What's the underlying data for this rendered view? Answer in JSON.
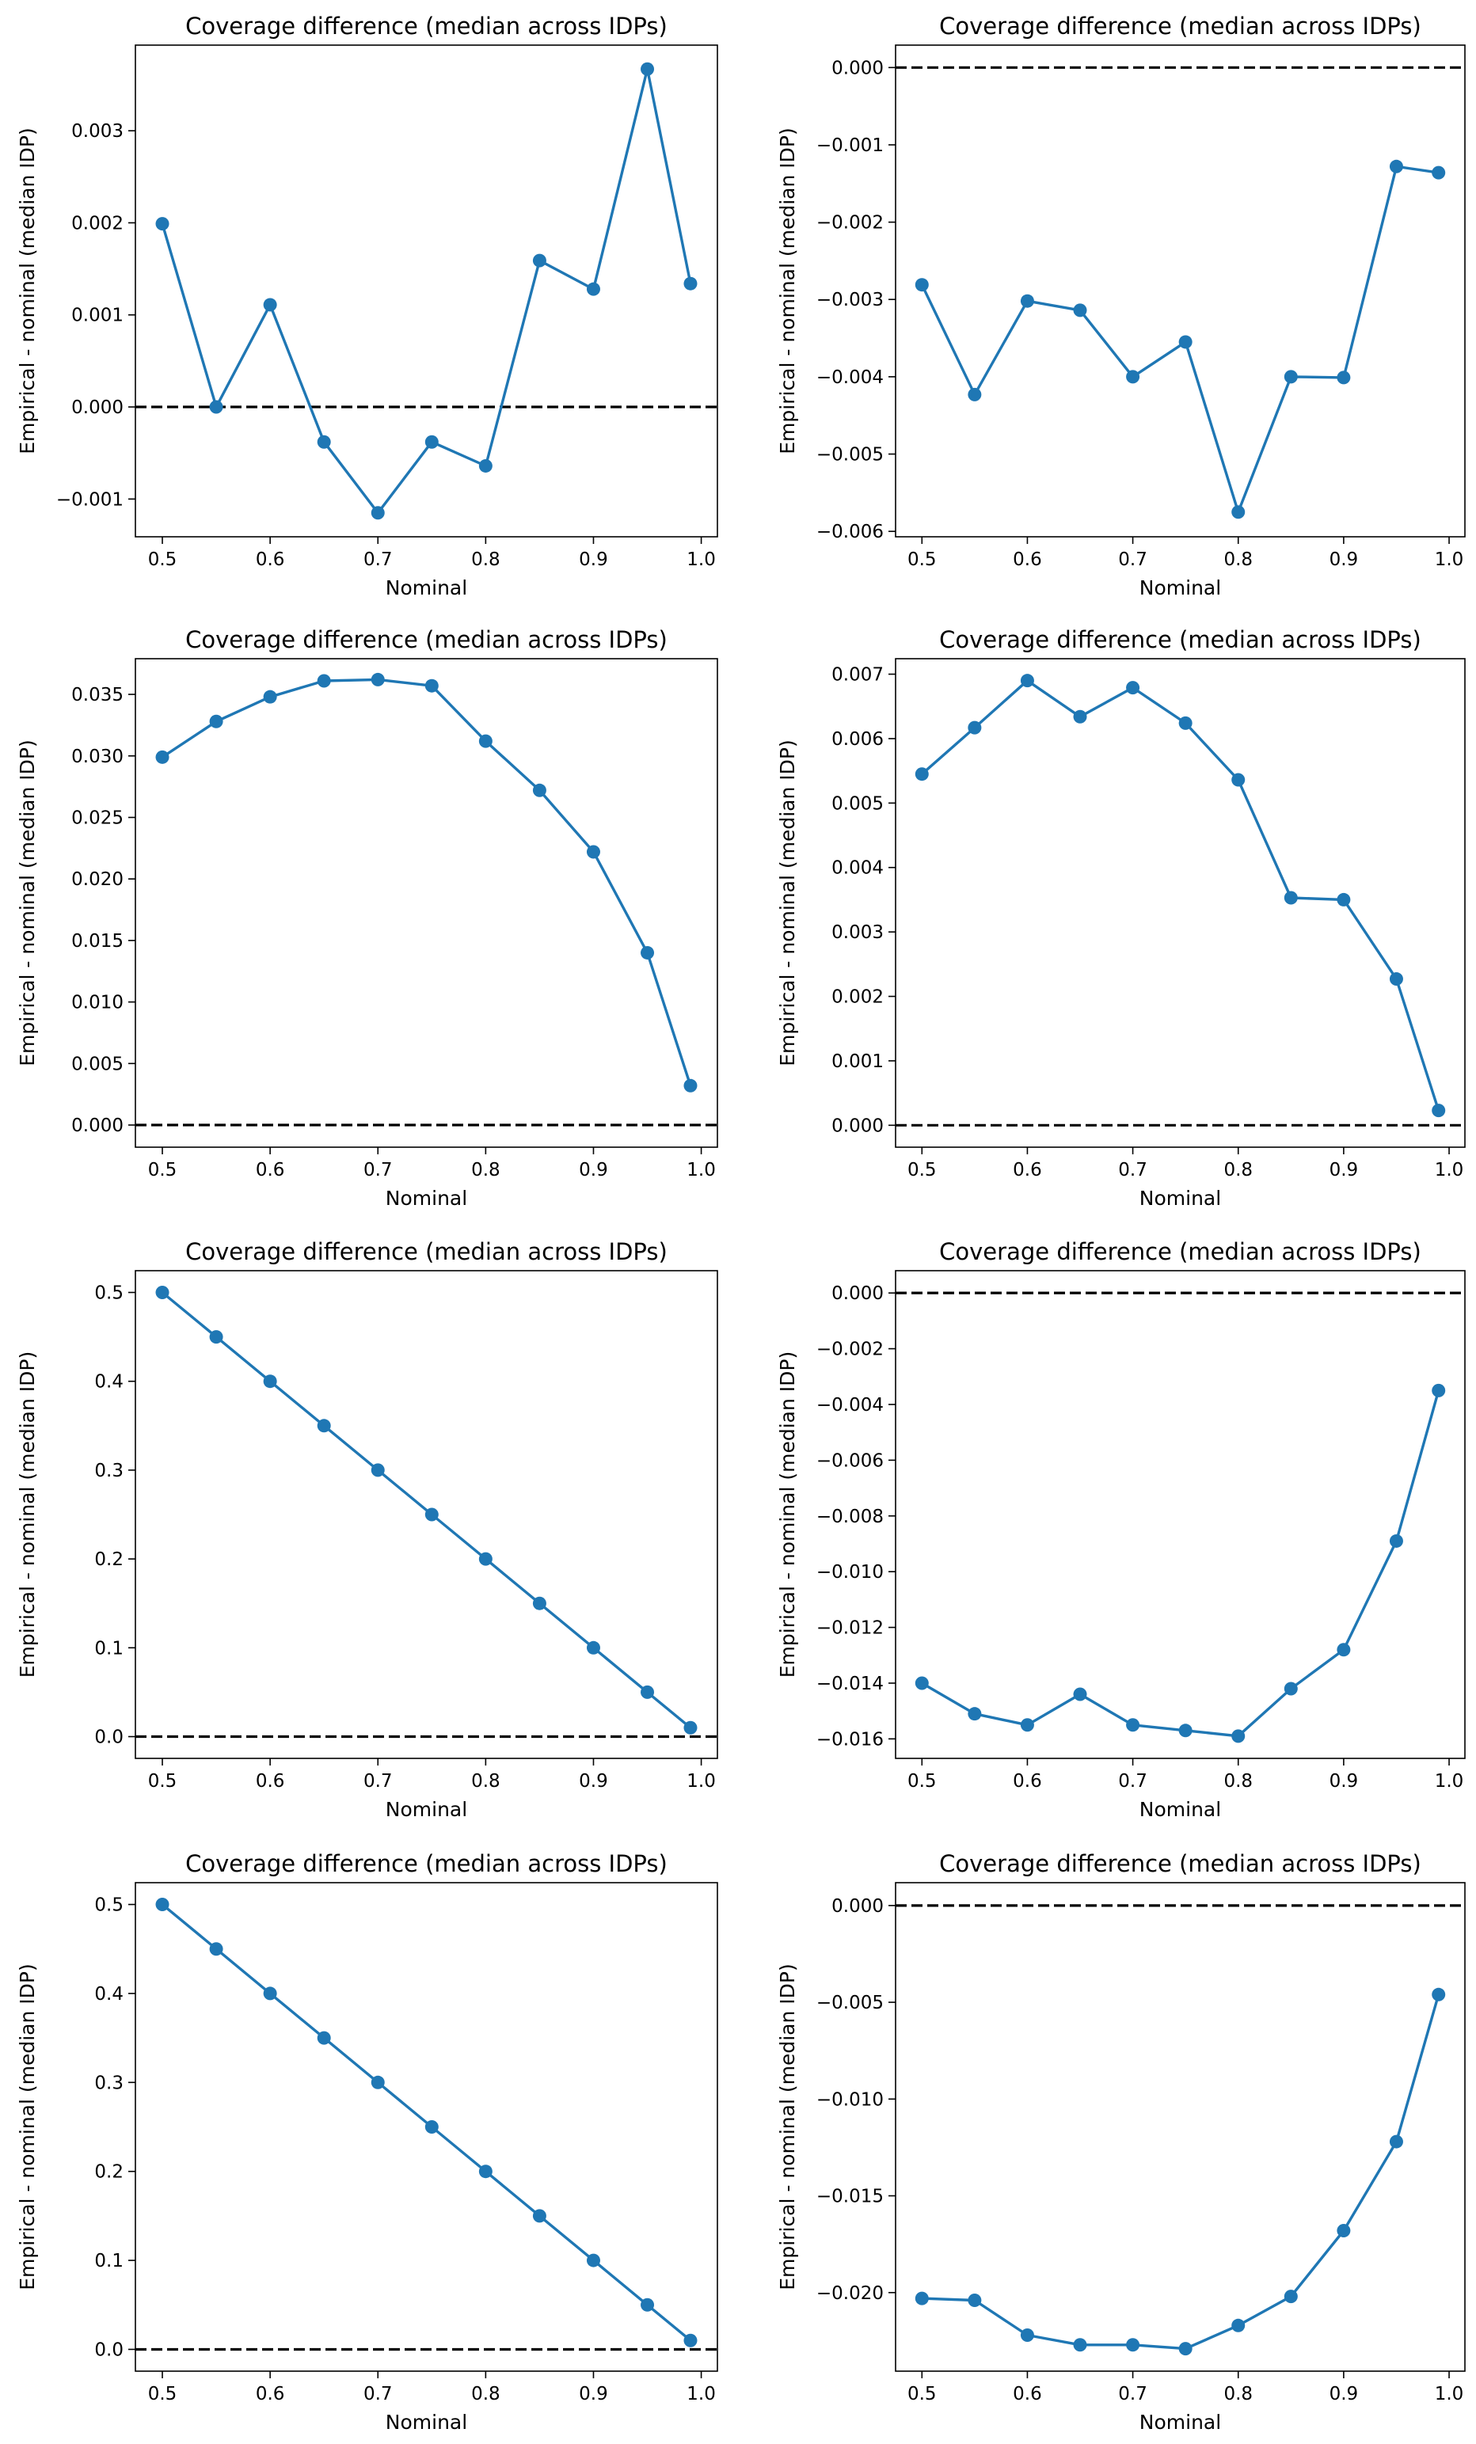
{
  "chart_data": [
    {
      "type": "line",
      "title": "Coverage difference (median across IDPs)",
      "xlabel": "Nominal",
      "ylabel": "Empirical - nominal (median IDP)",
      "xlim": [
        0.475,
        1.015
      ],
      "ylim": [
        -0.00141,
        0.00393
      ],
      "x_ticks": [
        "0.5",
        "0.6",
        "0.7",
        "0.8",
        "0.9",
        "1.0"
      ],
      "y_ticks": [
        "−0.001",
        "0.000",
        "0.001",
        "0.002",
        "0.003"
      ],
      "reference_line": 0.0,
      "x": [
        0.5,
        0.55,
        0.6,
        0.65,
        0.7,
        0.75,
        0.8,
        0.85,
        0.9,
        0.95,
        0.99
      ],
      "values": [
        0.00199,
        0.0,
        0.00111,
        -0.00038,
        -0.00115,
        -0.00038,
        -0.00064,
        0.00159,
        0.00128,
        0.00367,
        0.00134
      ]
    },
    {
      "type": "line",
      "title": "Coverage difference (median across IDPs)",
      "xlabel": "Nominal",
      "ylabel": "Empirical - nominal (median IDP)",
      "xlim": [
        0.475,
        1.015
      ],
      "ylim": [
        -0.00607,
        0.00029
      ],
      "x_ticks": [
        "0.5",
        "0.6",
        "0.7",
        "0.8",
        "0.9",
        "1.0"
      ],
      "y_ticks": [
        "−0.006",
        "−0.005",
        "−0.004",
        "−0.003",
        "−0.002",
        "−0.001",
        "0.000"
      ],
      "reference_line": 0.0,
      "x": [
        0.5,
        0.55,
        0.6,
        0.65,
        0.7,
        0.75,
        0.8,
        0.85,
        0.9,
        0.95,
        0.99
      ],
      "values": [
        -0.00281,
        -0.00423,
        -0.00302,
        -0.00314,
        -0.004,
        -0.00355,
        -0.00575,
        -0.004,
        -0.00401,
        -0.00128,
        -0.00136
      ]
    },
    {
      "type": "line",
      "title": "Coverage difference (median across IDPs)",
      "xlabel": "Nominal",
      "ylabel": "Empirical - nominal (median IDP)",
      "xlim": [
        0.475,
        1.015
      ],
      "ylim": [
        -0.0018,
        0.0379
      ],
      "x_ticks": [
        "0.5",
        "0.6",
        "0.7",
        "0.8",
        "0.9",
        "1.0"
      ],
      "y_ticks": [
        "0.000",
        "0.005",
        "0.010",
        "0.015",
        "0.020",
        "0.025",
        "0.030",
        "0.035"
      ],
      "reference_line": 0.0,
      "x": [
        0.5,
        0.55,
        0.6,
        0.65,
        0.7,
        0.75,
        0.8,
        0.85,
        0.9,
        0.95,
        0.99
      ],
      "values": [
        0.0299,
        0.0328,
        0.0348,
        0.0361,
        0.0362,
        0.0357,
        0.0312,
        0.0272,
        0.0222,
        0.014,
        0.0032
      ]
    },
    {
      "type": "line",
      "title": "Coverage difference (median across IDPs)",
      "xlabel": "Nominal",
      "ylabel": "Empirical - nominal (median IDP)",
      "xlim": [
        0.475,
        1.015
      ],
      "ylim": [
        -0.00034,
        0.00724
      ],
      "x_ticks": [
        "0.5",
        "0.6",
        "0.7",
        "0.8",
        "0.9",
        "1.0"
      ],
      "y_ticks": [
        "0.000",
        "0.001",
        "0.002",
        "0.003",
        "0.004",
        "0.005",
        "0.006",
        "0.007"
      ],
      "reference_line": 0.0,
      "x": [
        0.5,
        0.55,
        0.6,
        0.65,
        0.7,
        0.75,
        0.8,
        0.85,
        0.9,
        0.95,
        0.99
      ],
      "values": [
        0.00545,
        0.00617,
        0.0069,
        0.00634,
        0.00679,
        0.00624,
        0.00536,
        0.00353,
        0.0035,
        0.00227,
        0.00023
      ]
    },
    {
      "type": "line",
      "title": "Coverage difference (median across IDPs)",
      "xlabel": "Nominal",
      "ylabel": "Empirical - nominal (median IDP)",
      "xlim": [
        0.475,
        1.015
      ],
      "ylim": [
        -0.0245,
        0.5245
      ],
      "x_ticks": [
        "0.5",
        "0.6",
        "0.7",
        "0.8",
        "0.9",
        "1.0"
      ],
      "y_ticks": [
        "0.0",
        "0.1",
        "0.2",
        "0.3",
        "0.4",
        "0.5"
      ],
      "reference_line": 0.0,
      "x": [
        0.5,
        0.55,
        0.6,
        0.65,
        0.7,
        0.75,
        0.8,
        0.85,
        0.9,
        0.95,
        0.99
      ],
      "values": [
        0.5,
        0.45,
        0.4,
        0.35,
        0.3,
        0.25,
        0.2,
        0.15,
        0.1,
        0.05,
        0.01
      ]
    },
    {
      "type": "line",
      "title": "Coverage difference (median across IDPs)",
      "xlabel": "Nominal",
      "ylabel": "Empirical - nominal (median IDP)",
      "xlim": [
        0.475,
        1.015
      ],
      "ylim": [
        -0.0167,
        0.0008
      ],
      "x_ticks": [
        "0.5",
        "0.6",
        "0.7",
        "0.8",
        "0.9",
        "1.0"
      ],
      "y_ticks": [
        "−0.016",
        "−0.014",
        "−0.012",
        "−0.010",
        "−0.008",
        "−0.006",
        "−0.004",
        "−0.002",
        "0.000"
      ],
      "reference_line": 0.0,
      "x": [
        0.5,
        0.55,
        0.6,
        0.65,
        0.7,
        0.75,
        0.8,
        0.85,
        0.9,
        0.95,
        0.99
      ],
      "values": [
        -0.014,
        -0.0151,
        -0.0155,
        -0.0144,
        -0.0155,
        -0.0157,
        -0.0159,
        -0.0142,
        -0.0128,
        -0.0089,
        -0.0035
      ]
    },
    {
      "type": "line",
      "title": "Coverage difference (median across IDPs)",
      "xlabel": "Nominal",
      "ylabel": "Empirical - nominal (median IDP)",
      "xlim": [
        0.475,
        1.015
      ],
      "ylim": [
        -0.0245,
        0.5245
      ],
      "x_ticks": [
        "0.5",
        "0.6",
        "0.7",
        "0.8",
        "0.9",
        "1.0"
      ],
      "y_ticks": [
        "0.0",
        "0.1",
        "0.2",
        "0.3",
        "0.4",
        "0.5"
      ],
      "reference_line": 0.0,
      "x": [
        0.5,
        0.55,
        0.6,
        0.65,
        0.7,
        0.75,
        0.8,
        0.85,
        0.9,
        0.95,
        0.99
      ],
      "values": [
        0.5,
        0.45,
        0.4,
        0.35,
        0.3,
        0.25,
        0.2,
        0.15,
        0.1,
        0.05,
        0.01
      ]
    },
    {
      "type": "line",
      "title": "Coverage difference (median across IDPs)",
      "xlabel": "Nominal",
      "ylabel": "Empirical - nominal (median IDP)",
      "xlim": [
        0.475,
        1.015
      ],
      "ylim": [
        -0.02406,
        0.00118
      ],
      "x_ticks": [
        "0.5",
        "0.6",
        "0.7",
        "0.8",
        "0.9",
        "1.0"
      ],
      "y_ticks": [
        "−0.020",
        "−0.015",
        "−0.010",
        "−0.005",
        "0.000"
      ],
      "reference_line": 0.0,
      "x": [
        0.5,
        0.55,
        0.6,
        0.65,
        0.7,
        0.75,
        0.8,
        0.85,
        0.9,
        0.95,
        0.99
      ],
      "values": [
        -0.0203,
        -0.0204,
        -0.0222,
        -0.0227,
        -0.0227,
        -0.0229,
        -0.0217,
        -0.0202,
        -0.0168,
        -0.0122,
        -0.0046
      ]
    }
  ]
}
